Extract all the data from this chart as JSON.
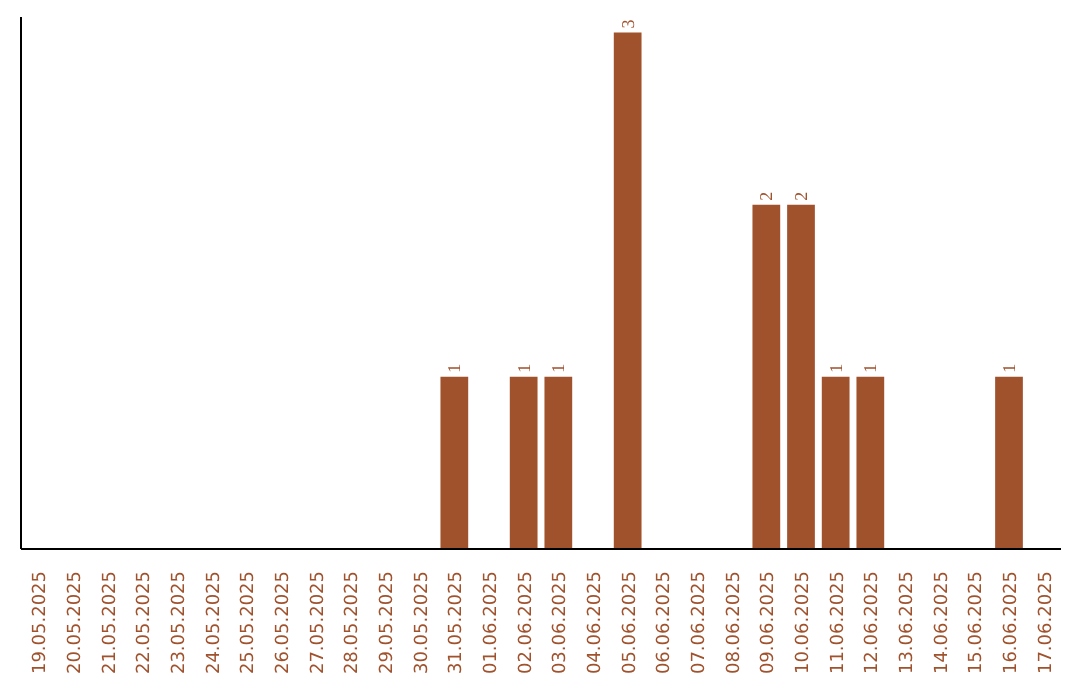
{
  "chart_data": {
    "type": "bar",
    "categories": [
      "19.05.2025",
      "20.05.2025",
      "21.05.2025",
      "22.05.2025",
      "23.05.2025",
      "24.05.2025",
      "25.05.2025",
      "26.05.2025",
      "27.05.2025",
      "28.05.2025",
      "29.05.2025",
      "30.05.2025",
      "31.05.2025",
      "01.06.2025",
      "02.06.2025",
      "03.06.2025",
      "04.06.2025",
      "05.06.2025",
      "06.06.2025",
      "07.06.2025",
      "08.06.2025",
      "09.06.2025",
      "10.06.2025",
      "11.06.2025",
      "12.06.2025",
      "13.06.2025",
      "14.06.2025",
      "15.06.2025",
      "16.06.2025",
      "17.06.2025"
    ],
    "values": [
      null,
      null,
      null,
      null,
      null,
      null,
      null,
      null,
      null,
      null,
      null,
      null,
      1,
      null,
      1,
      1,
      null,
      3,
      null,
      null,
      null,
      2,
      2,
      1,
      1,
      null,
      null,
      null,
      1,
      null
    ],
    "value_labels": [
      null,
      null,
      null,
      null,
      null,
      null,
      null,
      null,
      null,
      null,
      null,
      null,
      "1",
      null,
      "1",
      "1",
      null,
      "3",
      null,
      null,
      null,
      "2",
      "2",
      "1",
      "1",
      null,
      null,
      null,
      "1",
      null
    ],
    "color": "#a0522d",
    "grid": false
  }
}
